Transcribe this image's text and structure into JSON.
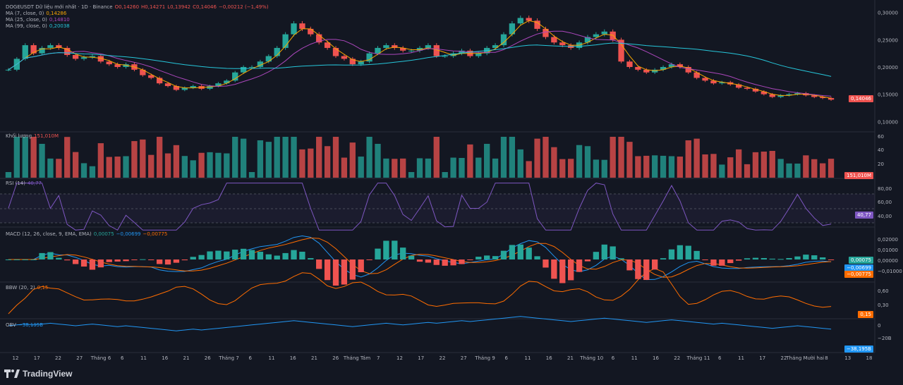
{
  "header": {
    "symbol_line": "DOGEUSDT Dữ liệu mới nhất · 1D · Binance",
    "open": "O0,14260",
    "high": "H0,14271",
    "low": "L0,13942",
    "close": "C0,14046",
    "change": "−0,00212 (−1,49%)",
    "ma7_label": "MA (7, close, 0)",
    "ma7_value": "0,14286",
    "ma25_label": "MA (25, close, 0)",
    "ma25_value": "0,14810",
    "ma99_label": "MA (99, close, 0)",
    "ma99_value": "0,20038"
  },
  "volume": {
    "label": "Khối lượng",
    "value": "151,010M",
    "ticks": [
      "60",
      "40",
      "20"
    ]
  },
  "rsi": {
    "label": "RSI (14)",
    "value": "40,77",
    "ticks": [
      "80,00",
      "60,00",
      "40,00"
    ]
  },
  "macd": {
    "label": "MACD (12, 26, close, 9, EMA, EMA)",
    "v1": "0,00075",
    "v2": "−0,00699",
    "v3": "−0,00775",
    "ticks": [
      "0,02000",
      "0,01000",
      "0,00000",
      "−0,01000"
    ]
  },
  "bbw": {
    "label": "BBW (20, 2)",
    "value": "0,15",
    "ticks": [
      "0,60",
      "0,30"
    ]
  },
  "obv": {
    "label": "OBV",
    "value": "−38,195B",
    "ticks": [
      "0",
      "−20B"
    ]
  },
  "price_axis": {
    "ticks": [
      "0,30000",
      "0,25000",
      "0,20000",
      "0,15000",
      "0,10000"
    ],
    "last": "0,14046"
  },
  "time_axis": [
    "12",
    "17",
    "22",
    "27",
    "Tháng 6",
    "6",
    "11",
    "16",
    "21",
    "26",
    "Tháng 7",
    "6",
    "11",
    "16",
    "21",
    "26",
    "Tháng Tám",
    "7",
    "12",
    "17",
    "22",
    "27",
    "Tháng 9",
    "6",
    "11",
    "16",
    "21",
    "Tháng 10",
    "6",
    "11",
    "16",
    "22",
    "Tháng 11",
    "6",
    "11",
    "17",
    "22",
    "Tháng Mười hai",
    "8",
    "13",
    "18"
  ],
  "brand": "TradingView",
  "colors": {
    "up": "#26a69a",
    "down": "#ef5350",
    "ma7": "#f7a600",
    "ma25": "#ab47bc",
    "ma99": "#26c6da",
    "rsi": "#7e57c2",
    "bg": "#131722"
  },
  "chart_data": {
    "type": "candlestick",
    "symbol": "DOGEUSDT",
    "interval": "1D",
    "y_range": [
      0.09,
      0.31
    ],
    "approx_close": [
      0.195,
      0.215,
      0.24,
      0.225,
      0.235,
      0.24,
      0.235,
      0.222,
      0.215,
      0.218,
      0.22,
      0.21,
      0.205,
      0.2,
      0.205,
      0.195,
      0.185,
      0.18,
      0.17,
      0.165,
      0.158,
      0.162,
      0.165,
      0.16,
      0.165,
      0.17,
      0.175,
      0.19,
      0.2,
      0.2,
      0.21,
      0.22,
      0.235,
      0.26,
      0.28,
      0.27,
      0.26,
      0.245,
      0.235,
      0.22,
      0.215,
      0.205,
      0.21,
      0.225,
      0.235,
      0.24,
      0.235,
      0.23,
      0.23,
      0.235,
      0.24,
      0.22,
      0.22,
      0.225,
      0.23,
      0.22,
      0.225,
      0.235,
      0.24,
      0.26,
      0.28,
      0.29,
      0.285,
      0.27,
      0.255,
      0.245,
      0.24,
      0.235,
      0.245,
      0.255,
      0.26,
      0.265,
      0.25,
      0.21,
      0.2,
      0.195,
      0.19,
      0.195,
      0.2,
      0.205,
      0.2,
      0.19,
      0.18,
      0.175,
      0.17,
      0.172,
      0.168,
      0.162,
      0.16,
      0.155,
      0.15,
      0.145,
      0.148,
      0.15,
      0.152,
      0.148,
      0.145,
      0.143,
      0.14
    ]
  }
}
